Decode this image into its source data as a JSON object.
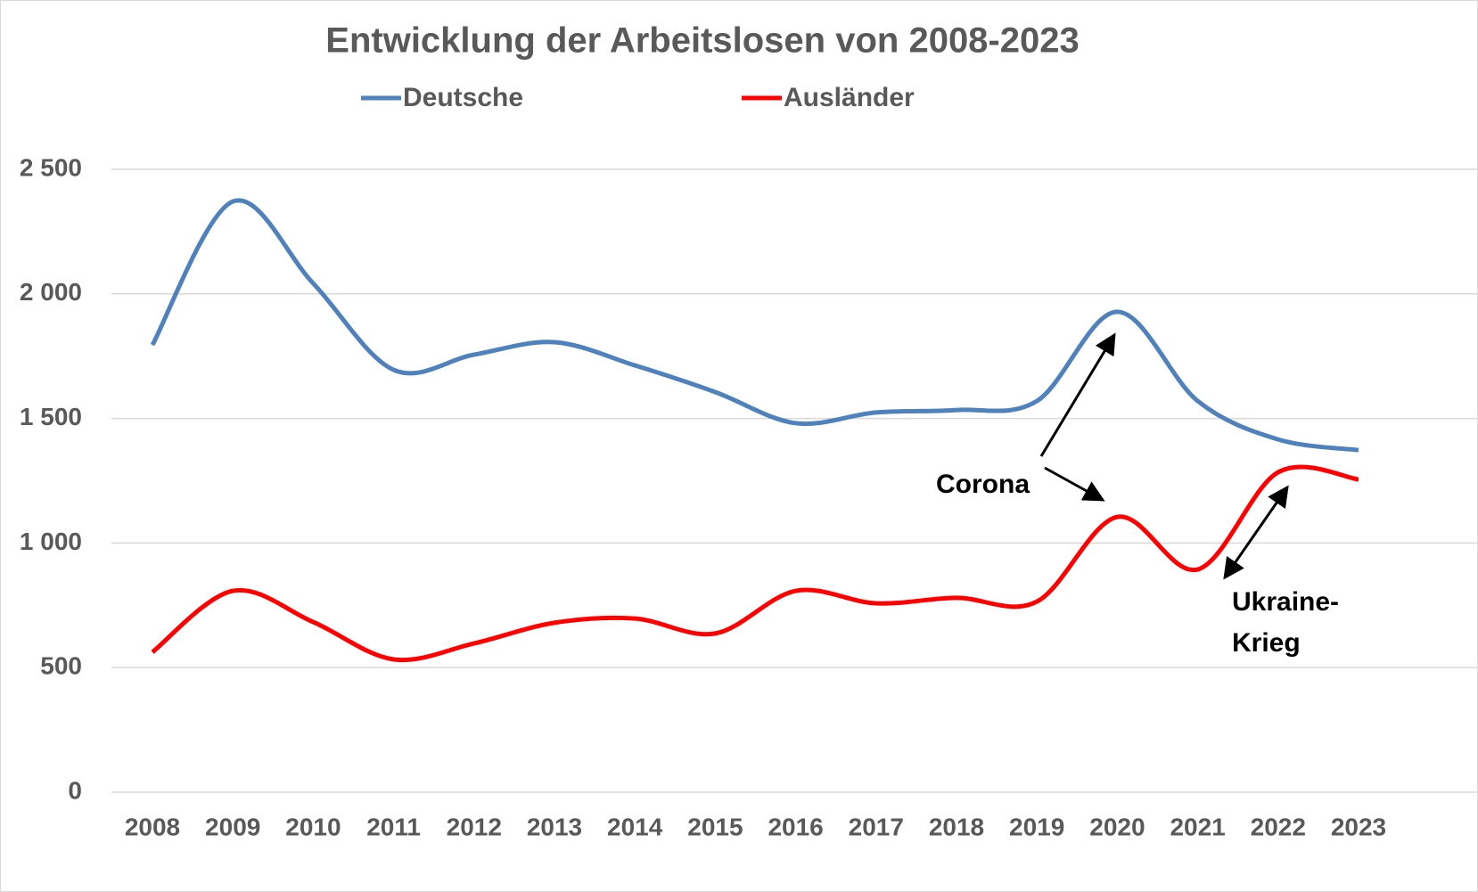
{
  "chart_data": {
    "type": "line",
    "title": "Entwicklung der Arbeitslosen von 2008-2023",
    "categories": [
      "2008",
      "2009",
      "2010",
      "2011",
      "2012",
      "2013",
      "2014",
      "2015",
      "2016",
      "2017",
      "2018",
      "2019",
      "2020",
      "2021",
      "2022",
      "2023"
    ],
    "series": [
      {
        "name": "Deutsche",
        "color": "#4f81bd",
        "values": [
          1795,
          2371,
          2042,
          1695,
          1756,
          1806,
          1713,
          1606,
          1481,
          1524,
          1534,
          1570,
          1928,
          1570,
          1416,
          1373
        ]
      },
      {
        "name": "Ausländer",
        "color": "#ff0000",
        "values": [
          562,
          808,
          683,
          533,
          597,
          680,
          697,
          637,
          808,
          758,
          780,
          765,
          1105,
          894,
          1284,
          1255
        ]
      }
    ],
    "ylim": [
      0,
      2500
    ],
    "yticks": [
      0,
      500,
      {
        "value": 1000,
        "label": "1 000"
      },
      {
        "value": 1500,
        "label": "1 500"
      },
      {
        "value": 2000,
        "label": "2 000"
      },
      {
        "value": 2500,
        "label": "2 500"
      }
    ],
    "grid": true,
    "smooth": true,
    "legend": "top",
    "annotations": [
      {
        "text": "Corona"
      },
      {
        "lines": [
          "Ukraine-",
          "Krieg"
        ]
      }
    ]
  }
}
